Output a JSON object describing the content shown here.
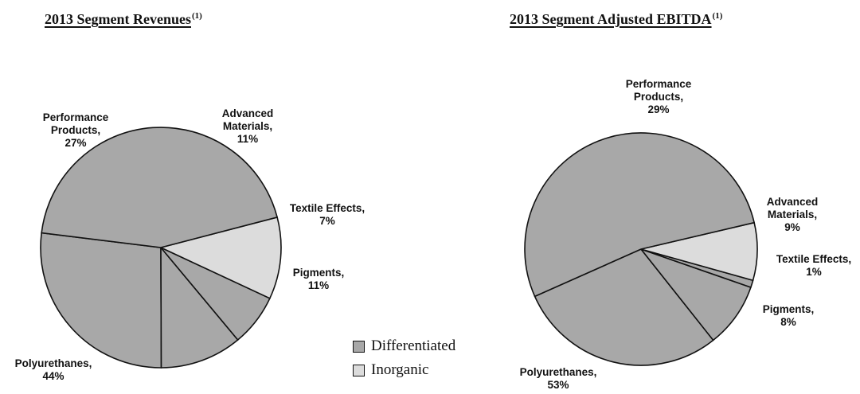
{
  "colors": {
    "Differentiated": "#a8a8a8",
    "Inorganic": "#dcdcdc",
    "outline": "#111111"
  },
  "legend": [
    {
      "label": "Differentiated",
      "color": "#a8a8a8"
    },
    {
      "label": "Inorganic",
      "color": "#dcdcdc"
    }
  ],
  "chart_data": [
    {
      "type": "pie",
      "title": "2013 Segment Revenues",
      "title_sup": "(1)",
      "slices": [
        {
          "label": "Performance Products",
          "value": 27,
          "display": "27%",
          "group": "Differentiated"
        },
        {
          "label": "Advanced Materials",
          "value": 11,
          "display": "11%",
          "group": "Differentiated"
        },
        {
          "label": "Textile Effects",
          "value": 7,
          "display": "7%",
          "group": "Differentiated"
        },
        {
          "label": "Pigments",
          "value": 11,
          "display": "11%",
          "group": "Inorganic"
        },
        {
          "label": "Polyurethanes",
          "value": 44,
          "display": "44%",
          "group": "Differentiated"
        }
      ]
    },
    {
      "type": "pie",
      "title": "2013 Segment Adjusted EBITDA",
      "title_sup": "(1)",
      "slices": [
        {
          "label": "Performance Products",
          "value": 29,
          "display": "29%",
          "group": "Differentiated"
        },
        {
          "label": "Advanced Materials",
          "value": 9,
          "display": "9%",
          "group": "Differentiated"
        },
        {
          "label": "Textile Effects",
          "value": 1,
          "display": "1%",
          "group": "Differentiated"
        },
        {
          "label": "Pigments",
          "value": 8,
          "display": "8%",
          "group": "Inorganic"
        },
        {
          "label": "Polyurethanes",
          "value": 53,
          "display": "53%",
          "group": "Differentiated"
        }
      ]
    }
  ]
}
